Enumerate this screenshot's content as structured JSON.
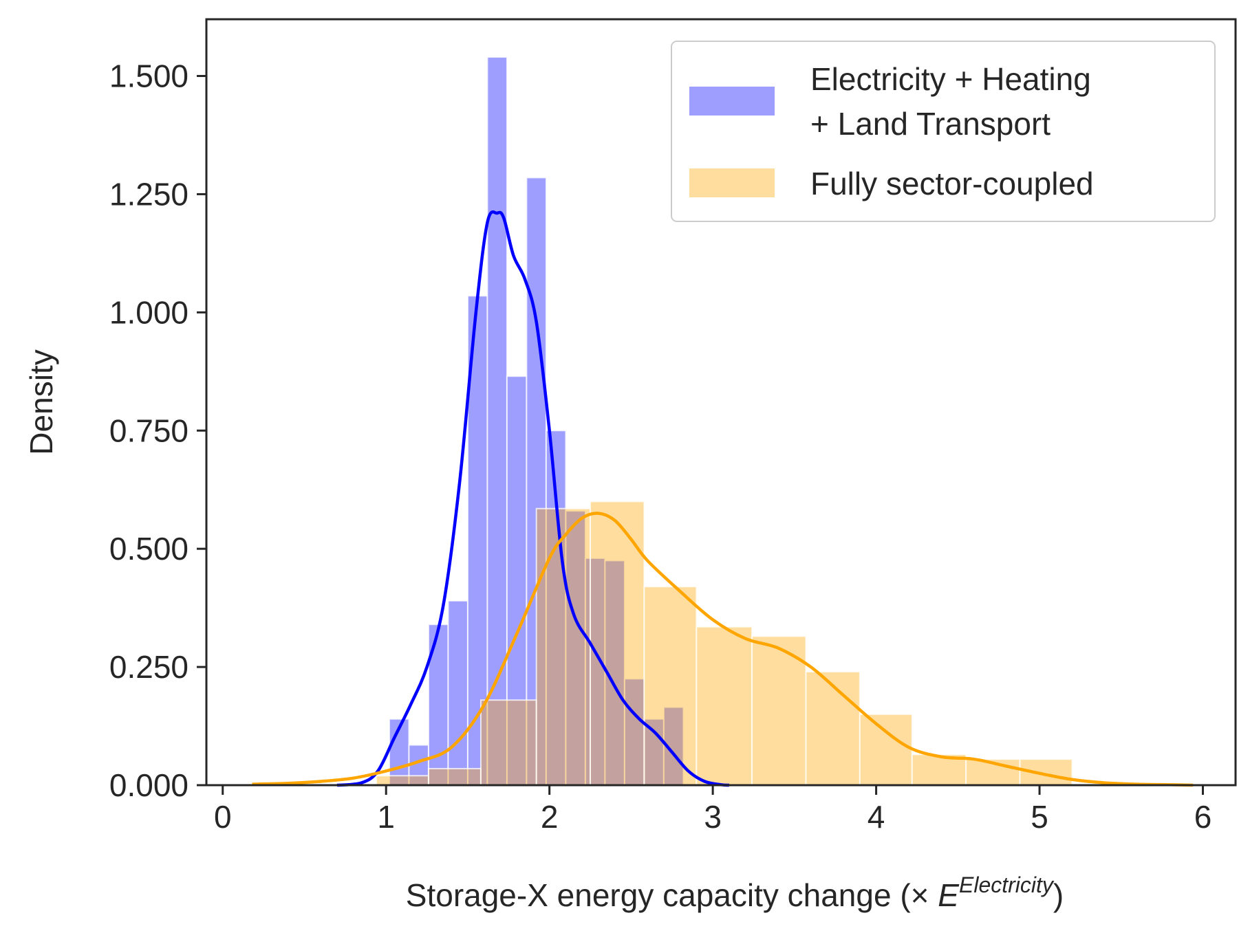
{
  "chart_data": {
    "type": "histogram",
    "xlabel": "Storage-X energy capacity change (× ",
    "xlabel_math_base": "E",
    "xlabel_math_sup": "Electricity",
    "xlabel_close": ")",
    "ylabel": "Density",
    "xlim": [
      -0.1,
      6.2
    ],
    "ylim": [
      0,
      1.62
    ],
    "x_ticks": [
      0,
      1,
      2,
      3,
      4,
      5,
      6
    ],
    "x_tick_labels": [
      "0",
      "1",
      "2",
      "3",
      "4",
      "5",
      "6"
    ],
    "y_ticks": [
      0,
      0.25,
      0.5,
      0.75,
      1.0,
      1.25,
      1.5
    ],
    "y_tick_labels": [
      "0.000",
      "0.250",
      "0.500",
      "0.750",
      "1.000",
      "1.250",
      "1.500"
    ],
    "legend_position": "upper-right",
    "series": [
      {
        "name": "Electricity + Heating + Land Transport",
        "legend_lines": [
          "Electricity + Heating",
          "+ Land Transport"
        ],
        "color": "#0000ff",
        "fill_color": "#9999ff",
        "bins": [
          {
            "x0": 1.02,
            "x1": 1.14,
            "density": 0.14
          },
          {
            "x0": 1.14,
            "x1": 1.26,
            "density": 0.085
          },
          {
            "x0": 1.26,
            "x1": 1.38,
            "density": 0.34
          },
          {
            "x0": 1.38,
            "x1": 1.5,
            "density": 0.39
          },
          {
            "x0": 1.5,
            "x1": 1.62,
            "density": 1.035
          },
          {
            "x0": 1.62,
            "x1": 1.74,
            "density": 1.54
          },
          {
            "x0": 1.74,
            "x1": 1.86,
            "density": 0.865
          },
          {
            "x0": 1.86,
            "x1": 1.98,
            "density": 1.285
          },
          {
            "x0": 1.98,
            "x1": 2.1,
            "density": 0.75
          },
          {
            "x0": 2.1,
            "x1": 2.22,
            "density": 0.58
          },
          {
            "x0": 2.22,
            "x1": 2.34,
            "density": 0.48
          },
          {
            "x0": 2.34,
            "x1": 2.46,
            "density": 0.475
          },
          {
            "x0": 2.46,
            "x1": 2.58,
            "density": 0.225
          },
          {
            "x0": 2.58,
            "x1": 2.7,
            "density": 0.14
          },
          {
            "x0": 2.7,
            "x1": 2.82,
            "density": 0.165
          }
        ],
        "kde": {
          "x": [
            0.7,
            0.85,
            0.95,
            1.05,
            1.15,
            1.25,
            1.35,
            1.45,
            1.55,
            1.62,
            1.68,
            1.72,
            1.78,
            1.85,
            1.92,
            2.0,
            2.08,
            2.15,
            2.25,
            2.35,
            2.45,
            2.55,
            2.65,
            2.75,
            2.85,
            2.95,
            3.05,
            3.1
          ],
          "y": [
            0.0,
            0.005,
            0.03,
            0.1,
            0.17,
            0.25,
            0.38,
            0.64,
            1.0,
            1.19,
            1.21,
            1.2,
            1.12,
            1.07,
            0.98,
            0.75,
            0.47,
            0.36,
            0.3,
            0.24,
            0.18,
            0.14,
            0.11,
            0.07,
            0.03,
            0.008,
            0.001,
            0.0
          ]
        }
      },
      {
        "name": "Fully sector-coupled",
        "legend_lines": [
          "Fully sector-coupled"
        ],
        "color": "#ffa500",
        "fill_color": "#ffdb99",
        "bins": [
          {
            "x0": 0.94,
            "x1": 1.26,
            "density": 0.02
          },
          {
            "x0": 1.26,
            "x1": 1.58,
            "density": 0.035
          },
          {
            "x0": 1.58,
            "x1": 1.92,
            "density": 0.18
          },
          {
            "x0": 1.92,
            "x1": 2.25,
            "density": 0.585
          },
          {
            "x0": 2.25,
            "x1": 2.58,
            "density": 0.6
          },
          {
            "x0": 2.58,
            "x1": 2.9,
            "density": 0.42
          },
          {
            "x0": 2.9,
            "x1": 3.24,
            "density": 0.335
          },
          {
            "x0": 3.24,
            "x1": 3.57,
            "density": 0.315
          },
          {
            "x0": 3.57,
            "x1": 3.9,
            "density": 0.24
          },
          {
            "x0": 3.9,
            "x1": 4.22,
            "density": 0.15
          },
          {
            "x0": 4.22,
            "x1": 4.55,
            "density": 0.065
          },
          {
            "x0": 4.55,
            "x1": 4.88,
            "density": 0.055
          },
          {
            "x0": 4.88,
            "x1": 5.2,
            "density": 0.055
          }
        ],
        "kde": {
          "x": [
            0.18,
            0.4,
            0.6,
            0.8,
            1.0,
            1.2,
            1.4,
            1.6,
            1.8,
            2.0,
            2.1,
            2.2,
            2.3,
            2.4,
            2.5,
            2.6,
            2.8,
            3.0,
            3.2,
            3.4,
            3.6,
            3.8,
            4.0,
            4.2,
            4.4,
            4.6,
            4.8,
            5.0,
            5.2,
            5.4,
            5.6,
            5.8,
            5.94
          ],
          "y": [
            0.002,
            0.004,
            0.008,
            0.015,
            0.03,
            0.05,
            0.08,
            0.17,
            0.32,
            0.48,
            0.53,
            0.565,
            0.575,
            0.56,
            0.52,
            0.475,
            0.41,
            0.35,
            0.31,
            0.29,
            0.25,
            0.19,
            0.13,
            0.08,
            0.06,
            0.055,
            0.04,
            0.025,
            0.012,
            0.005,
            0.002,
            0.001,
            0.0
          ]
        }
      }
    ]
  }
}
